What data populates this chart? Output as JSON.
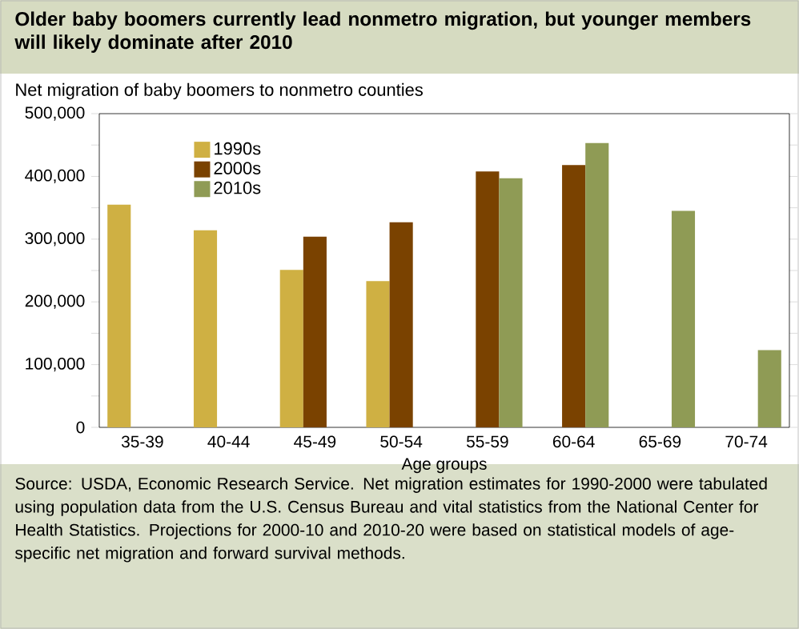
{
  "chart_data": {
    "type": "bar",
    "title": "Older baby boomers currently lead nonmetro migration, but younger members will likely dominate after 2010",
    "ylabel": "Net migration of baby boomers to nonmetro counties",
    "xlabel": "Age groups",
    "categories": [
      "35-39",
      "40-44",
      "45-49",
      "50-54",
      "55-59",
      "60-64",
      "65-69",
      "70-74"
    ],
    "series": [
      {
        "name": "1990s",
        "color": "#cfb043",
        "values": [
          355000,
          314000,
          251000,
          233000,
          null,
          null,
          null,
          null
        ]
      },
      {
        "name": "2000s",
        "color": "#7a4200",
        "values": [
          null,
          null,
          304000,
          327000,
          408000,
          418000,
          null,
          null
        ]
      },
      {
        "name": "2010s",
        "color": "#8f9b55",
        "values": [
          null,
          null,
          null,
          null,
          397000,
          453000,
          345000,
          123000
        ]
      }
    ],
    "ylim": [
      0,
      500000
    ],
    "yticks": [
      0,
      {
        "value": 100000,
        "label": "100,000"
      },
      {
        "value": 200000,
        "label": "200,000"
      },
      {
        "value": 300000,
        "label": "300,000"
      },
      {
        "value": 400000,
        "label": "400,000"
      },
      {
        "value": 500000,
        "label": "500,000"
      }
    ],
    "legend": "top left",
    "grid": false,
    "annotations": [
      "Source: USDA, Economic Research Service. Net migration estimates for 1990-2000 were tabulated using population data from the U.S. Census Bureau and vital statistics from the National Center for Health Statistics. Projections for 2000-10 and 2010-20 were based on statistical models of age-specific net migration and forward survival methods."
    ]
  }
}
